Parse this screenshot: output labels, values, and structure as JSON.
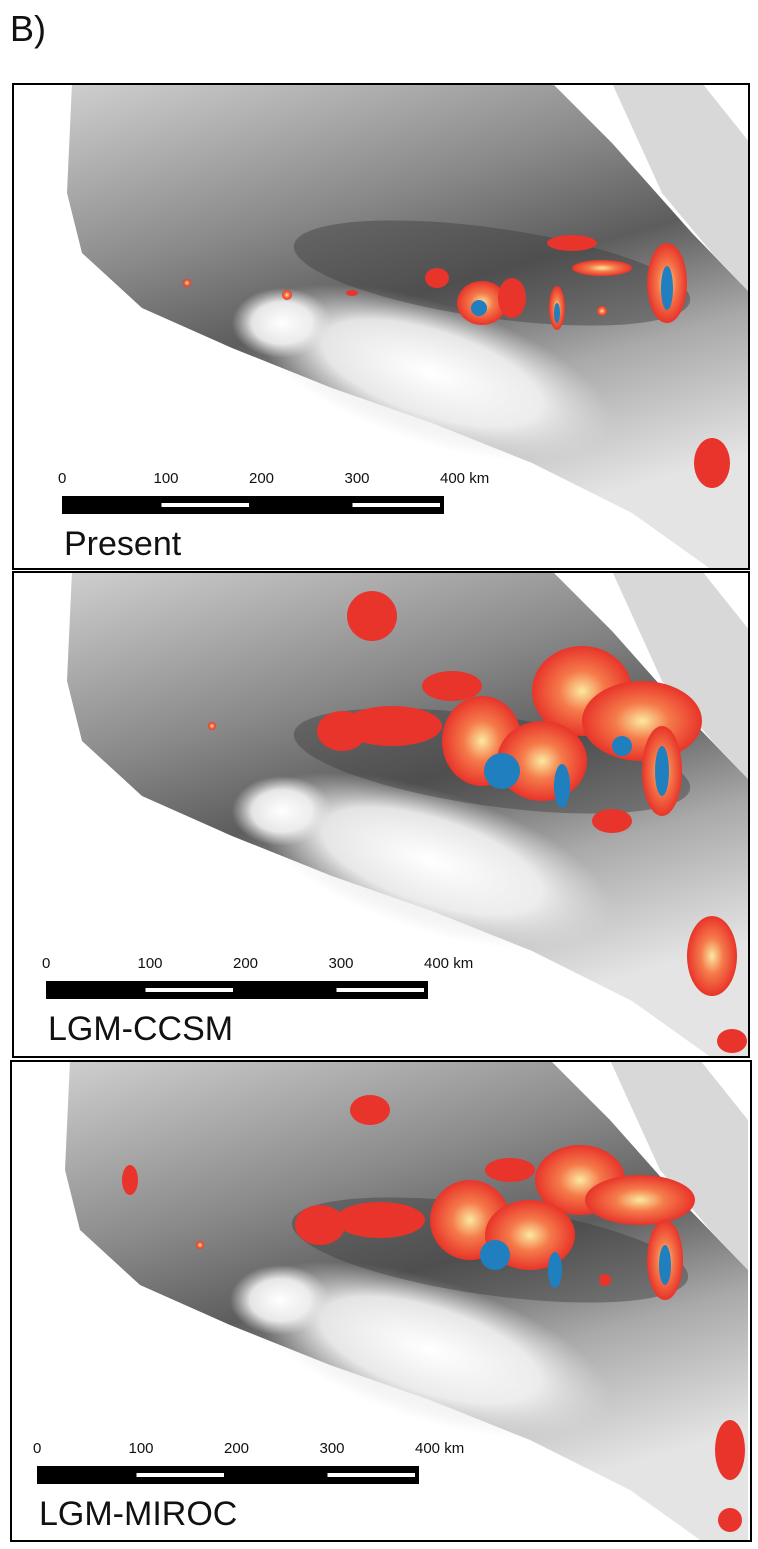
{
  "figure_label": "B)",
  "panels": [
    {
      "label": "Present",
      "scale_labels": [
        "0",
        "100",
        "200",
        "300",
        "400 km"
      ]
    },
    {
      "label": "LGM-CCSM",
      "scale_labels": [
        "0",
        "100",
        "200",
        "300",
        "400 km"
      ]
    },
    {
      "label": "LGM-MIROC",
      "scale_labels": [
        "0",
        "100",
        "200",
        "300",
        "400 km"
      ]
    }
  ]
}
